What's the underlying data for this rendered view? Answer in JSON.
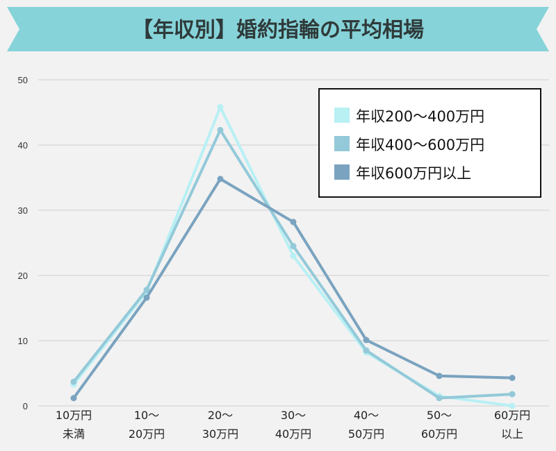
{
  "title": "【年収別】婚約指輪の平均相場",
  "colors": {
    "banner": "#86d3d9",
    "background": "#f2f2f2",
    "grid": "#cfcfcf"
  },
  "chart_data": {
    "type": "line",
    "categories": [
      [
        "10万円",
        "未満"
      ],
      [
        "10〜",
        "20万円"
      ],
      [
        "20〜",
        "30万円"
      ],
      [
        "30〜",
        "40万円"
      ],
      [
        "40〜",
        "50万円"
      ],
      [
        "50〜",
        "60万円"
      ],
      [
        "60万円",
        "以上"
      ]
    ],
    "ylim": [
      0,
      50
    ],
    "yticks": [
      "0",
      "10",
      "20",
      "30",
      "40",
      "50"
    ],
    "grid": true,
    "legend_position": "top-right",
    "series": [
      {
        "name": "年収200〜400万円",
        "color": "#b8f0f4",
        "values": [
          3.3,
          17.5,
          45.8,
          23.0,
          8.2,
          1.5,
          0
        ]
      },
      {
        "name": "年収400〜600万円",
        "color": "#93c9d9",
        "values": [
          3.7,
          17.8,
          42.3,
          24.5,
          8.5,
          1.2,
          1.8
        ]
      },
      {
        "name": "年収600万円以上",
        "color": "#7aa3bf",
        "values": [
          1.2,
          16.6,
          34.8,
          28.2,
          10.1,
          4.6,
          4.3
        ]
      }
    ]
  }
}
